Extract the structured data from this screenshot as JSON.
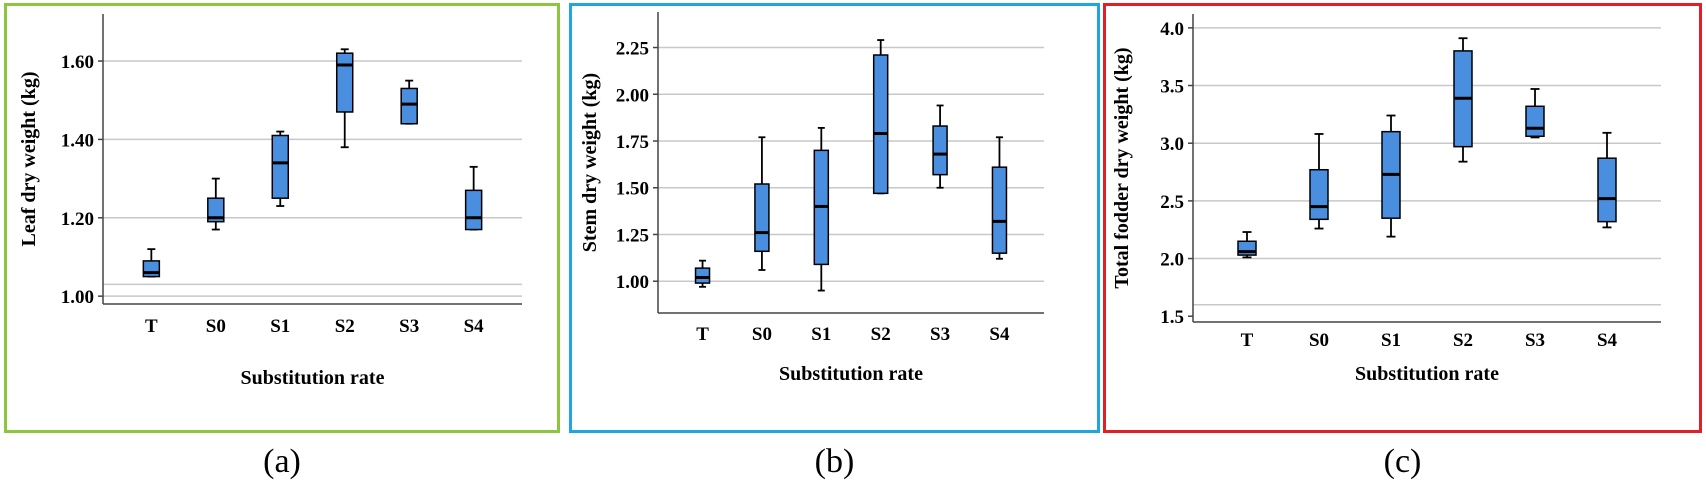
{
  "colors": {
    "panel_a": "#8cc63f",
    "panel_b": "#1ea6e0",
    "panel_c": "#e21f26",
    "box": "#4a8fdf",
    "grid": "#c8c8c8"
  },
  "chart_data": [
    {
      "type": "box",
      "caption": "(a)",
      "xlabel": "Substitution rate",
      "ylabel": "Leaf dry weight (kg)",
      "categories": [
        "T",
        "S0",
        "S1",
        "S2",
        "S3",
        "S4"
      ],
      "ylim": [
        0.98,
        1.72
      ],
      "yticks": [
        1.0,
        1.2,
        1.4,
        1.6
      ],
      "ytick_labels": [
        "1.00",
        "1.20",
        "1.40",
        "1.60"
      ],
      "grid": [
        1.0,
        1.03,
        1.2,
        1.4,
        1.6
      ],
      "boxes": [
        {
          "min": 1.05,
          "q1": 1.05,
          "median": 1.06,
          "q3": 1.09,
          "max": 1.12
        },
        {
          "min": 1.17,
          "q1": 1.19,
          "median": 1.2,
          "q3": 1.25,
          "max": 1.3
        },
        {
          "min": 1.23,
          "q1": 1.25,
          "median": 1.34,
          "q3": 1.41,
          "max": 1.42
        },
        {
          "min": 1.38,
          "q1": 1.47,
          "median": 1.59,
          "q3": 1.62,
          "max": 1.63
        },
        {
          "min": 1.44,
          "q1": 1.44,
          "median": 1.49,
          "q3": 1.53,
          "max": 1.55
        },
        {
          "min": 1.17,
          "q1": 1.17,
          "median": 1.2,
          "q3": 1.27,
          "max": 1.33
        }
      ]
    },
    {
      "type": "box",
      "caption": "(b)",
      "xlabel": "Substitution rate",
      "ylabel": "Stem dry weight (kg)",
      "categories": [
        "T",
        "S0",
        "S1",
        "S2",
        "S3",
        "S4"
      ],
      "ylim": [
        0.83,
        2.44
      ],
      "yticks": [
        1.0,
        1.25,
        1.5,
        1.75,
        2.0,
        2.25
      ],
      "ytick_labels": [
        "1.00",
        "1.25",
        "1.50",
        "1.75",
        "2.00",
        "2.25"
      ],
      "grid": [
        1.0,
        1.25,
        1.5,
        1.75,
        2.0,
        2.25
      ],
      "boxes": [
        {
          "min": 0.97,
          "q1": 0.99,
          "median": 1.02,
          "q3": 1.07,
          "max": 1.11
        },
        {
          "min": 1.06,
          "q1": 1.16,
          "median": 1.26,
          "q3": 1.52,
          "max": 1.77
        },
        {
          "min": 0.95,
          "q1": 1.09,
          "median": 1.4,
          "q3": 1.7,
          "max": 1.82
        },
        {
          "min": 1.47,
          "q1": 1.47,
          "median": 1.79,
          "q3": 2.21,
          "max": 2.29
        },
        {
          "min": 1.5,
          "q1": 1.57,
          "median": 1.68,
          "q3": 1.83,
          "max": 1.94
        },
        {
          "min": 1.12,
          "q1": 1.15,
          "median": 1.32,
          "q3": 1.61,
          "max": 1.77
        }
      ]
    },
    {
      "type": "box",
      "caption": "(c)",
      "xlabel": "Substitution rate",
      "ylabel": "Total fodder dry weight (kg)",
      "categories": [
        "T",
        "S0",
        "S1",
        "S2",
        "S3",
        "S4"
      ],
      "ylim": [
        1.45,
        4.12
      ],
      "yticks": [
        1.5,
        2.0,
        2.5,
        3.0,
        3.5,
        4.0
      ],
      "ytick_labels": [
        "1.5",
        "2.0",
        "2.5",
        "3.0",
        "3.5",
        "4.0"
      ],
      "grid": [
        1.6,
        2.0,
        2.5,
        3.0,
        3.5,
        4.0
      ],
      "boxes": [
        {
          "min": 2.01,
          "q1": 2.03,
          "median": 2.06,
          "q3": 2.15,
          "max": 2.23
        },
        {
          "min": 2.26,
          "q1": 2.34,
          "median": 2.45,
          "q3": 2.77,
          "max": 3.08
        },
        {
          "min": 2.19,
          "q1": 2.35,
          "median": 2.73,
          "q3": 3.1,
          "max": 3.24
        },
        {
          "min": 2.84,
          "q1": 2.97,
          "median": 3.39,
          "q3": 3.8,
          "max": 3.91
        },
        {
          "min": 3.05,
          "q1": 3.06,
          "median": 3.13,
          "q3": 3.32,
          "max": 3.47
        },
        {
          "min": 2.27,
          "q1": 2.32,
          "median": 2.52,
          "q3": 2.87,
          "max": 3.09
        }
      ]
    }
  ]
}
